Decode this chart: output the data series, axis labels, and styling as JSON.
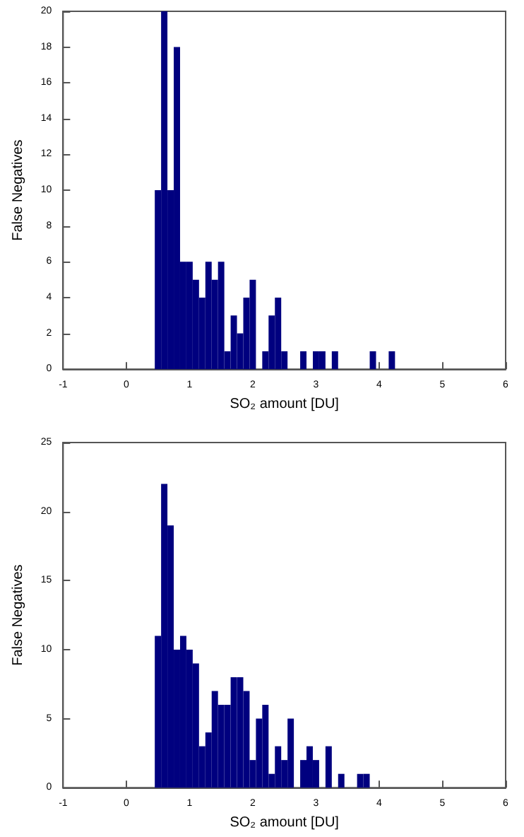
{
  "chart_data": [
    {
      "type": "histogram",
      "xlabel": "SO₂ amount [DU]",
      "ylabel": "False Negatives",
      "color": "#00007f",
      "bins": [
        0.45,
        0.55,
        0.65,
        0.75,
        0.85,
        0.95,
        1.05,
        1.15,
        1.25,
        1.35,
        1.45,
        1.55,
        1.65,
        1.75,
        1.85,
        1.95,
        2.05,
        2.15,
        2.25,
        2.35,
        2.45,
        2.55,
        2.65,
        2.75,
        2.85,
        2.95,
        3.05,
        3.15,
        3.25,
        3.35,
        3.45,
        3.55,
        3.65,
        3.75,
        3.85,
        3.95,
        4.05,
        4.15,
        4.25
      ],
      "values": [
        10,
        20,
        10,
        18,
        6,
        6,
        5,
        4,
        6,
        5,
        6,
        1,
        3,
        2,
        4,
        5,
        0,
        1,
        3,
        4,
        1,
        0,
        0,
        1,
        0,
        1,
        1,
        0,
        1,
        0,
        0,
        0,
        0,
        0,
        1,
        0,
        0,
        1
      ],
      "xlim": [
        -1,
        6
      ],
      "xticks": [
        -1,
        0,
        1,
        2,
        3,
        4,
        5,
        6
      ],
      "ylim": [
        0,
        20
      ],
      "yticks": [
        0,
        2,
        4,
        6,
        8,
        10,
        12,
        14,
        16,
        18,
        20
      ],
      "grid": false
    },
    {
      "type": "histogram",
      "xlabel": "SO₂ amount [DU]",
      "ylabel": "False Negatives",
      "color": "#00007f",
      "bins": [
        0.45,
        0.55,
        0.65,
        0.75,
        0.85,
        0.95,
        1.05,
        1.15,
        1.25,
        1.35,
        1.45,
        1.55,
        1.65,
        1.75,
        1.85,
        1.95,
        2.05,
        2.15,
        2.25,
        2.35,
        2.45,
        2.55,
        2.65,
        2.75,
        2.85,
        2.95,
        3.05,
        3.15,
        3.25,
        3.35,
        3.45,
        3.55,
        3.65,
        3.75,
        3.85
      ],
      "values": [
        11,
        22,
        19,
        10,
        11,
        10,
        9,
        3,
        4,
        7,
        6,
        6,
        8,
        8,
        7,
        2,
        5,
        6,
        1,
        3,
        2,
        5,
        0,
        2,
        3,
        2,
        0,
        3,
        0,
        1,
        0,
        0,
        1,
        1
      ],
      "xlim": [
        -1,
        6
      ],
      "xticks": [
        -1,
        0,
        1,
        2,
        3,
        4,
        5,
        6
      ],
      "ylim": [
        0,
        25
      ],
      "yticks": [
        0,
        5,
        10,
        15,
        20,
        25
      ],
      "grid": false
    }
  ]
}
